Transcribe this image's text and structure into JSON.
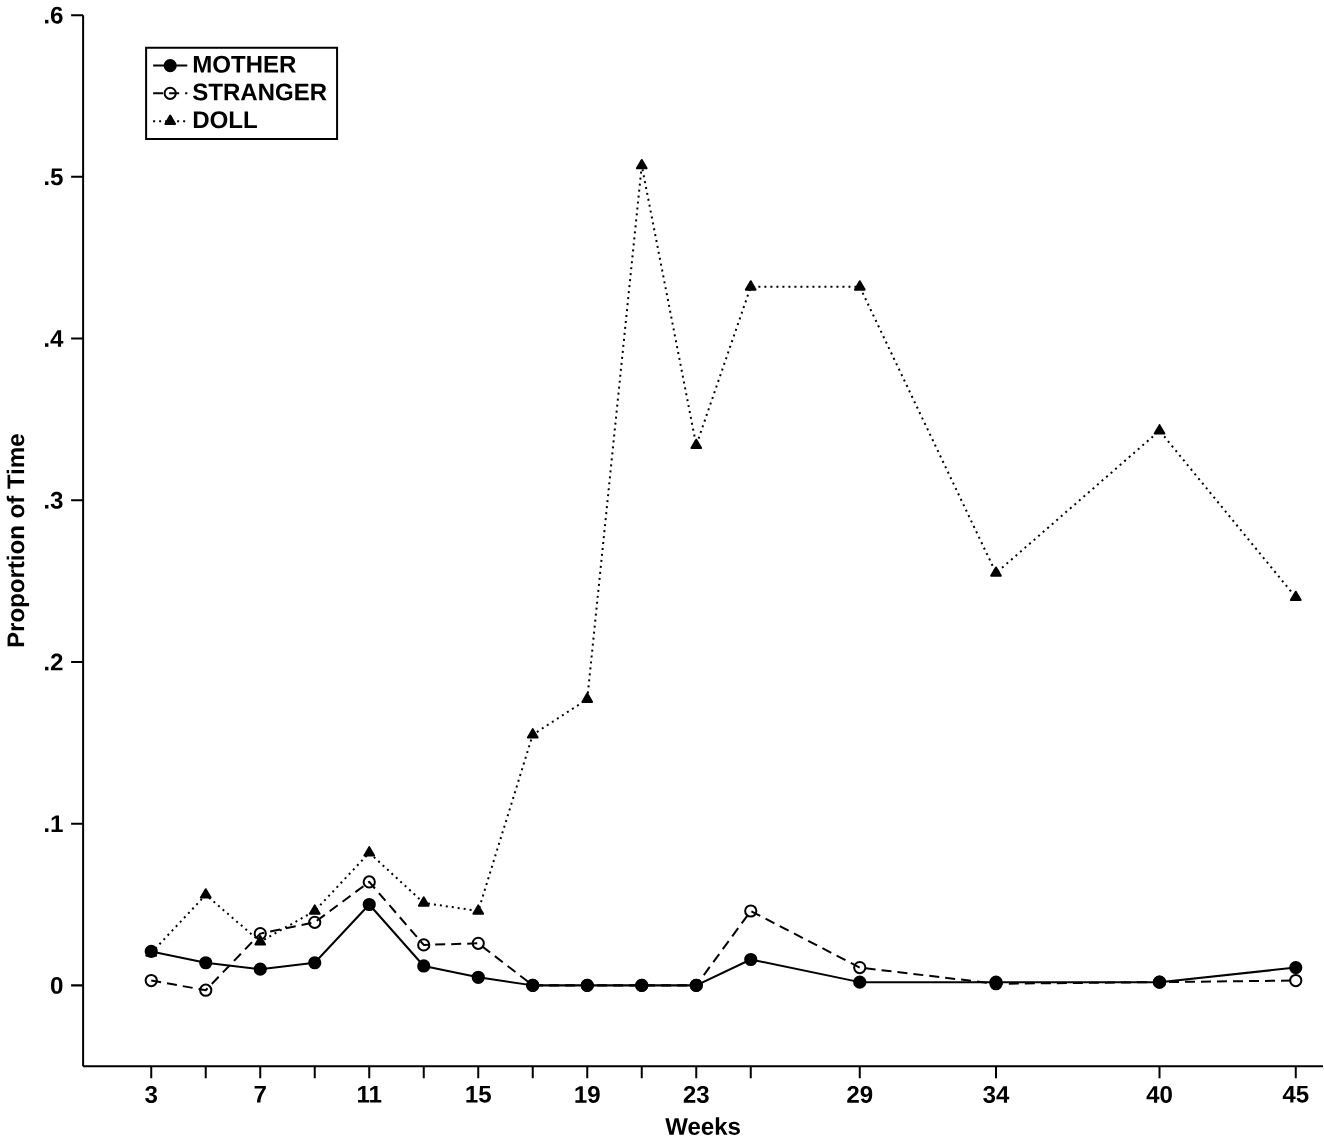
{
  "chart_data": {
    "type": "line",
    "xlabel": "Weeks",
    "ylabel": "Proportion of Time",
    "x": [
      3,
      5,
      7,
      9,
      11,
      13,
      15,
      17,
      19,
      21,
      23,
      25,
      29,
      34,
      40,
      45
    ],
    "series": [
      {
        "name": "MOTHER",
        "color": "#000000",
        "marker": "circle",
        "line_style": "solid",
        "values": [
          0.021,
          0.014,
          0.01,
          0.014,
          0.05,
          0.012,
          0.005,
          0,
          0,
          0,
          0,
          0.016,
          0.002,
          0.002,
          0.002,
          0.011
        ]
      },
      {
        "name": "STRANGER",
        "color": "#000000",
        "marker": "open circle",
        "line_style": "dashed",
        "values": [
          0.003,
          -0.003,
          0.032,
          0.039,
          0.064,
          0.025,
          0.026,
          0,
          0,
          0,
          0,
          0.046,
          0.011,
          0.001,
          0.002,
          0.003
        ]
      },
      {
        "name": "DOLL",
        "color": "#000000",
        "marker": "triangle",
        "line_style": "dotted",
        "values": [
          0.02,
          0.056,
          0.027,
          0.046,
          0.082,
          0.051,
          0.046,
          0.155,
          0.177,
          0.507,
          0.334,
          0.432,
          0.432,
          0.255,
          0.343,
          0.24
        ]
      }
    ],
    "xlim": [
      0.5,
      46
    ],
    "ylim": [
      -0.05,
      0.6
    ],
    "xticks": [
      3,
      {
        "value": 5,
        "label": null
      },
      7,
      {
        "value": 9,
        "label": null
      },
      11,
      {
        "value": 13,
        "label": null
      },
      15,
      {
        "value": 17,
        "label": null
      },
      19,
      {
        "value": 21,
        "label": null
      },
      23,
      {
        "value": 25,
        "label": null
      },
      29,
      34,
      40,
      45
    ],
    "yticks": [
      0,
      {
        "value": 0.1,
        "label": ".1"
      },
      {
        "value": 0.2,
        "label": ".2"
      },
      {
        "value": 0.3,
        "label": ".3"
      },
      {
        "value": 0.4,
        "label": ".4"
      },
      {
        "value": 0.5,
        "label": ".5"
      },
      {
        "value": 0.6,
        "label": ".6"
      }
    ],
    "grid": false,
    "legend": "top left"
  }
}
